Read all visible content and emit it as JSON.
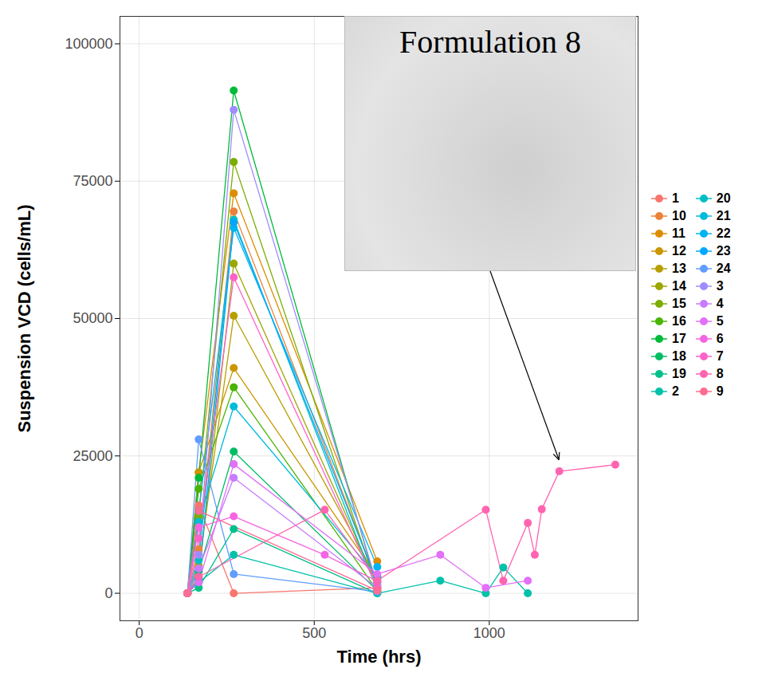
{
  "chart_data": {
    "type": "line",
    "marker": "circle",
    "x_label": "Time (hrs)",
    "y_label": "Suspension VCD (cells/mL)",
    "xlim": [
      -55,
      1425
    ],
    "xticks": [
      0,
      500,
      1000
    ],
    "ylim": [
      -5000,
      105000
    ],
    "yticks": [
      0,
      25000,
      50000,
      75000,
      100000
    ],
    "grid": true,
    "legend": "right",
    "annotation": {
      "text": "Formulation 8",
      "series": "8"
    },
    "series": [
      {
        "name": "1",
        "color": "#F8766D",
        "x": [
          138,
          170,
          270,
          680
        ],
        "values": [
          0,
          16000,
          0,
          1000
        ]
      },
      {
        "name": "10",
        "color": "#EC8239",
        "x": [
          138,
          170,
          270,
          680
        ],
        "values": [
          0,
          8000,
          69500,
          2000
        ]
      },
      {
        "name": "11",
        "color": "#DE8C00",
        "x": [
          138,
          170,
          270,
          680
        ],
        "values": [
          0,
          22000,
          72800,
          5800
        ]
      },
      {
        "name": "12",
        "color": "#CB9600",
        "x": [
          138,
          170,
          270,
          680
        ],
        "values": [
          0,
          22000,
          41000,
          3000
        ]
      },
      {
        "name": "13",
        "color": "#B79F00",
        "x": [
          138,
          170,
          270,
          680
        ],
        "values": [
          0,
          5000,
          50500,
          2500
        ]
      },
      {
        "name": "14",
        "color": "#9DA700",
        "x": [
          138,
          170,
          270,
          680
        ],
        "values": [
          0,
          3000,
          60000,
          1500
        ]
      },
      {
        "name": "15",
        "color": "#7CAE00",
        "x": [
          138,
          170,
          270,
          680
        ],
        "values": [
          0,
          14000,
          78500,
          1000
        ]
      },
      {
        "name": "16",
        "color": "#49B500",
        "x": [
          138,
          170,
          270,
          680
        ],
        "values": [
          0,
          19000,
          37500,
          500
        ]
      },
      {
        "name": "17",
        "color": "#00BA38",
        "x": [
          138,
          170,
          270,
          680
        ],
        "values": [
          0,
          21000,
          91500,
          1000
        ]
      },
      {
        "name": "18",
        "color": "#00BD64",
        "x": [
          138,
          170,
          270,
          680
        ],
        "values": [
          0,
          4000,
          25800,
          500
        ]
      },
      {
        "name": "19",
        "color": "#00C08B",
        "x": [
          138,
          170,
          270,
          680
        ],
        "values": [
          0,
          1000,
          11700,
          0
        ]
      },
      {
        "name": "2",
        "color": "#00C1AA",
        "x": [
          138,
          170,
          270,
          680,
          860,
          990,
          1040,
          1110
        ],
        "values": [
          0,
          2000,
          7000,
          0,
          2300,
          0,
          4700,
          0
        ]
      },
      {
        "name": "20",
        "color": "#00BFC4",
        "x": [
          138,
          170,
          270,
          680
        ],
        "values": [
          0,
          6000,
          68000,
          500
        ]
      },
      {
        "name": "21",
        "color": "#00BBDB",
        "x": [
          138,
          170,
          270,
          680
        ],
        "values": [
          0,
          13000,
          34000,
          3000
        ]
      },
      {
        "name": "22",
        "color": "#00B4F0",
        "x": [
          138,
          170,
          270,
          680
        ],
        "values": [
          0,
          15000,
          66500,
          4800
        ]
      },
      {
        "name": "23",
        "color": "#00A9FF",
        "x": [
          138,
          170,
          270,
          680
        ],
        "values": [
          0,
          2500,
          67500,
          2000
        ]
      },
      {
        "name": "24",
        "color": "#619CFF",
        "x": [
          138,
          170,
          270,
          680
        ],
        "values": [
          0,
          28000,
          3500,
          300
        ]
      },
      {
        "name": "3",
        "color": "#9F8CFF",
        "x": [
          138,
          170,
          270,
          680
        ],
        "values": [
          0,
          7000,
          88000,
          1500
        ]
      },
      {
        "name": "4",
        "color": "#C77CFF",
        "x": [
          138,
          170,
          270,
          680
        ],
        "values": [
          0,
          4500,
          21000,
          1000
        ]
      },
      {
        "name": "5",
        "color": "#E270F8",
        "x": [
          138,
          170,
          270,
          680,
          860,
          990,
          1110
        ],
        "values": [
          0,
          2000,
          23500,
          3500,
          7000,
          1000,
          2300
        ]
      },
      {
        "name": "6",
        "color": "#F564E3",
        "x": [
          138,
          170,
          270,
          530,
          680
        ],
        "values": [
          0,
          12000,
          14000,
          7000,
          2200
        ]
      },
      {
        "name": "7",
        "color": "#FF61C9",
        "x": [
          138,
          170,
          270,
          680
        ],
        "values": [
          0,
          10000,
          57500,
          1000
        ]
      },
      {
        "name": "8",
        "color": "#FF64B0",
        "x": [
          138,
          170,
          530,
          680,
          990,
          1040,
          1110,
          1130,
          1150,
          1200,
          1360
        ],
        "values": [
          0,
          3000,
          15200,
          2300,
          15200,
          2300,
          12800,
          7000,
          15300,
          22200,
          23400
        ]
      },
      {
        "name": "9",
        "color": "#FF6C91",
        "x": [
          138,
          170,
          680
        ],
        "values": [
          0,
          15000,
          500
        ]
      }
    ]
  }
}
